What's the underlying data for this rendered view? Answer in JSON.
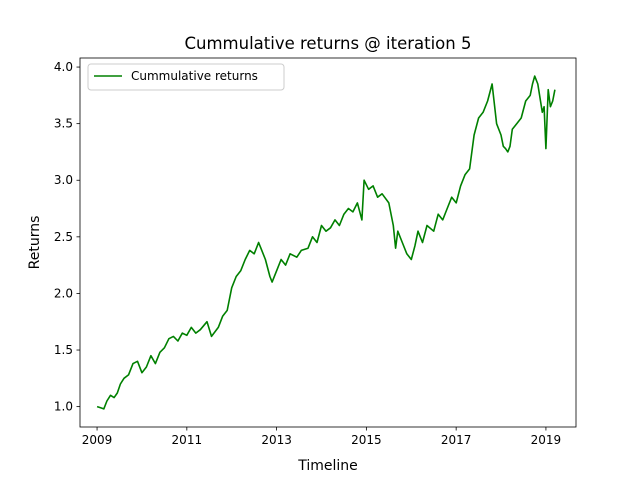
{
  "chart_data": {
    "type": "line",
    "title": "Cummulative returns @ iteration 5",
    "xlabel": "Timeline",
    "ylabel": "Returns",
    "xlim": [
      2008.62,
      2019.67
    ],
    "ylim": [
      0.82,
      4.08
    ],
    "x_ticks": [
      {
        "value": 2009,
        "label": "2009"
      },
      {
        "value": 2011,
        "label": "2011"
      },
      {
        "value": 2013,
        "label": "2013"
      },
      {
        "value": 2015,
        "label": "2015"
      },
      {
        "value": 2017,
        "label": "2017"
      },
      {
        "value": 2019,
        "label": "2019"
      }
    ],
    "y_ticks": [
      {
        "value": 1.0,
        "label": "1.0"
      },
      {
        "value": 1.5,
        "label": "1.5"
      },
      {
        "value": 2.0,
        "label": "2.0"
      },
      {
        "value": 2.5,
        "label": "2.5"
      },
      {
        "value": 3.0,
        "label": "3.0"
      },
      {
        "value": 3.5,
        "label": "3.5"
      },
      {
        "value": 4.0,
        "label": "4.0"
      }
    ],
    "grid": false,
    "legend": {
      "position": "upper-left",
      "entries": [
        "Cummulative returns"
      ]
    },
    "series": [
      {
        "name": "Cummulative returns",
        "color": "#008000",
        "x": [
          2009.0,
          2009.08,
          2009.15,
          2009.22,
          2009.3,
          2009.38,
          2009.45,
          2009.52,
          2009.6,
          2009.7,
          2009.8,
          2009.9,
          2010.0,
          2010.1,
          2010.2,
          2010.3,
          2010.4,
          2010.5,
          2010.6,
          2010.7,
          2010.8,
          2010.9,
          2011.0,
          2011.1,
          2011.2,
          2011.3,
          2011.45,
          2011.55,
          2011.7,
          2011.8,
          2011.9,
          2012.0,
          2012.1,
          2012.2,
          2012.3,
          2012.4,
          2012.5,
          2012.6,
          2012.65,
          2012.75,
          2012.85,
          2012.9,
          2013.0,
          2013.1,
          2013.2,
          2013.3,
          2013.45,
          2013.55,
          2013.7,
          2013.8,
          2013.9,
          2014.0,
          2014.1,
          2014.2,
          2014.3,
          2014.4,
          2014.5,
          2014.6,
          2014.7,
          2014.8,
          2014.9,
          2014.95,
          2015.05,
          2015.15,
          2015.25,
          2015.35,
          2015.5,
          2015.6,
          2015.65,
          2015.7,
          2015.8,
          2015.9,
          2016.0,
          2016.08,
          2016.15,
          2016.25,
          2016.35,
          2016.5,
          2016.6,
          2016.7,
          2016.8,
          2016.9,
          2017.0,
          2017.1,
          2017.2,
          2017.3,
          2017.4,
          2017.5,
          2017.6,
          2017.7,
          2017.8,
          2017.9,
          2018.0,
          2018.05,
          2018.1,
          2018.15,
          2018.2,
          2018.25,
          2018.35,
          2018.45,
          2018.55,
          2018.65,
          2018.7,
          2018.75,
          2018.82,
          2018.88,
          2018.92,
          2018.96,
          2019.0,
          2019.05,
          2019.1,
          2019.15,
          2019.2
        ],
        "y": [
          1.0,
          0.99,
          0.98,
          1.05,
          1.1,
          1.08,
          1.12,
          1.2,
          1.25,
          1.28,
          1.38,
          1.4,
          1.3,
          1.35,
          1.45,
          1.38,
          1.48,
          1.52,
          1.6,
          1.62,
          1.58,
          1.65,
          1.63,
          1.7,
          1.65,
          1.68,
          1.75,
          1.62,
          1.7,
          1.8,
          1.85,
          2.05,
          2.15,
          2.2,
          2.3,
          2.38,
          2.35,
          2.45,
          2.4,
          2.3,
          2.15,
          2.1,
          2.2,
          2.3,
          2.25,
          2.35,
          2.32,
          2.38,
          2.4,
          2.5,
          2.45,
          2.6,
          2.55,
          2.58,
          2.65,
          2.6,
          2.7,
          2.75,
          2.72,
          2.8,
          2.65,
          3.0,
          2.92,
          2.95,
          2.85,
          2.88,
          2.8,
          2.6,
          2.4,
          2.55,
          2.45,
          2.35,
          2.3,
          2.42,
          2.55,
          2.45,
          2.6,
          2.55,
          2.7,
          2.65,
          2.75,
          2.85,
          2.8,
          2.95,
          3.05,
          3.1,
          3.4,
          3.55,
          3.6,
          3.7,
          3.85,
          3.5,
          3.4,
          3.3,
          3.28,
          3.25,
          3.3,
          3.45,
          3.5,
          3.55,
          3.7,
          3.75,
          3.85,
          3.92,
          3.85,
          3.7,
          3.6,
          3.65,
          3.28,
          3.8,
          3.65,
          3.7,
          3.8
        ]
      }
    ]
  }
}
